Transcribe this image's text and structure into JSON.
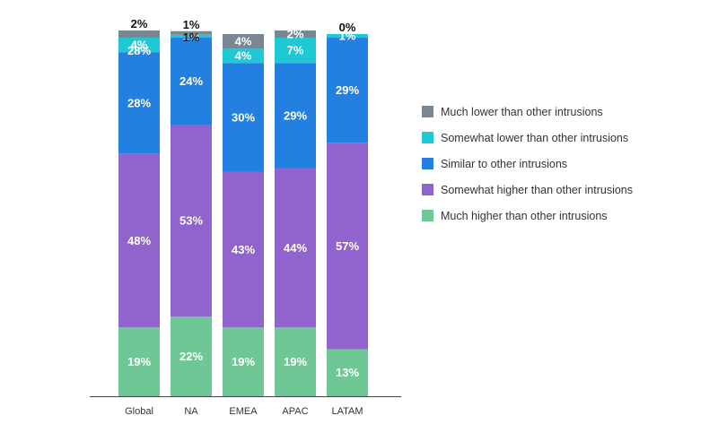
{
  "chart_data": {
    "type": "bar",
    "stacked": true,
    "title": "",
    "xlabel": "",
    "ylabel": "",
    "ylim": [
      0,
      100
    ],
    "legend_position": "right",
    "categories": [
      "Global",
      "NA",
      "EMEA",
      "APAC",
      "LATAM"
    ],
    "series": [
      {
        "name": "Much higher than other intrusions",
        "color": "#6fc795",
        "values": [
          19,
          22,
          19,
          19,
          13
        ],
        "labels": [
          "19%",
          "22%",
          "19%",
          "19%",
          "13%"
        ]
      },
      {
        "name": "Somewhat higher than other intrusions",
        "color": "#9163cc",
        "values": [
          48,
          53,
          43,
          44,
          57
        ],
        "labels": [
          "48%",
          "53%",
          "43%",
          "44%",
          "57%"
        ]
      },
      {
        "name": "Similar to other intrusions",
        "color": "#237fe0",
        "values": [
          28,
          24,
          30,
          29,
          29
        ],
        "labels": [
          "28%",
          "24%",
          "30%",
          "29%",
          "29%"
        ]
      },
      {
        "name": "Somewhat lower than other intrusions",
        "color": "#1ec8d4",
        "values": [
          4,
          0.8,
          4,
          7,
          1
        ],
        "labels": [
          "4%",
          "1%",
          "4%",
          "7%",
          "1%"
        ]
      },
      {
        "name": "Much lower than other intrusions",
        "color": "#7a8793",
        "values": [
          2,
          1,
          4,
          2,
          0
        ],
        "labels": [
          "2%",
          "1%",
          "4%",
          "2%",
          "0%"
        ]
      }
    ],
    "legend_order": [
      "Much lower than other intrusions",
      "Somewhat lower than other intrusions",
      "Similar to other intrusions",
      "Somewhat higher than other intrusions",
      "Much higher than other intrusions"
    ],
    "label_placement": [
      [
        "inside",
        "inside",
        "inside",
        "inside",
        "inside"
      ],
      [
        "inside",
        "inside",
        "inside",
        "inside",
        "inside"
      ],
      [
        "inside",
        "inside",
        "inside",
        "inside",
        "inside"
      ],
      [
        "inside",
        "inside",
        "inside",
        "inside",
        "inside"
      ],
      [
        "above",
        "above",
        "inside",
        "inside",
        "above"
      ]
    ],
    "extra_labels": [
      {
        "category": "Global",
        "text": "28%"
      },
      {
        "category": "NA",
        "text": "1%"
      }
    ]
  }
}
